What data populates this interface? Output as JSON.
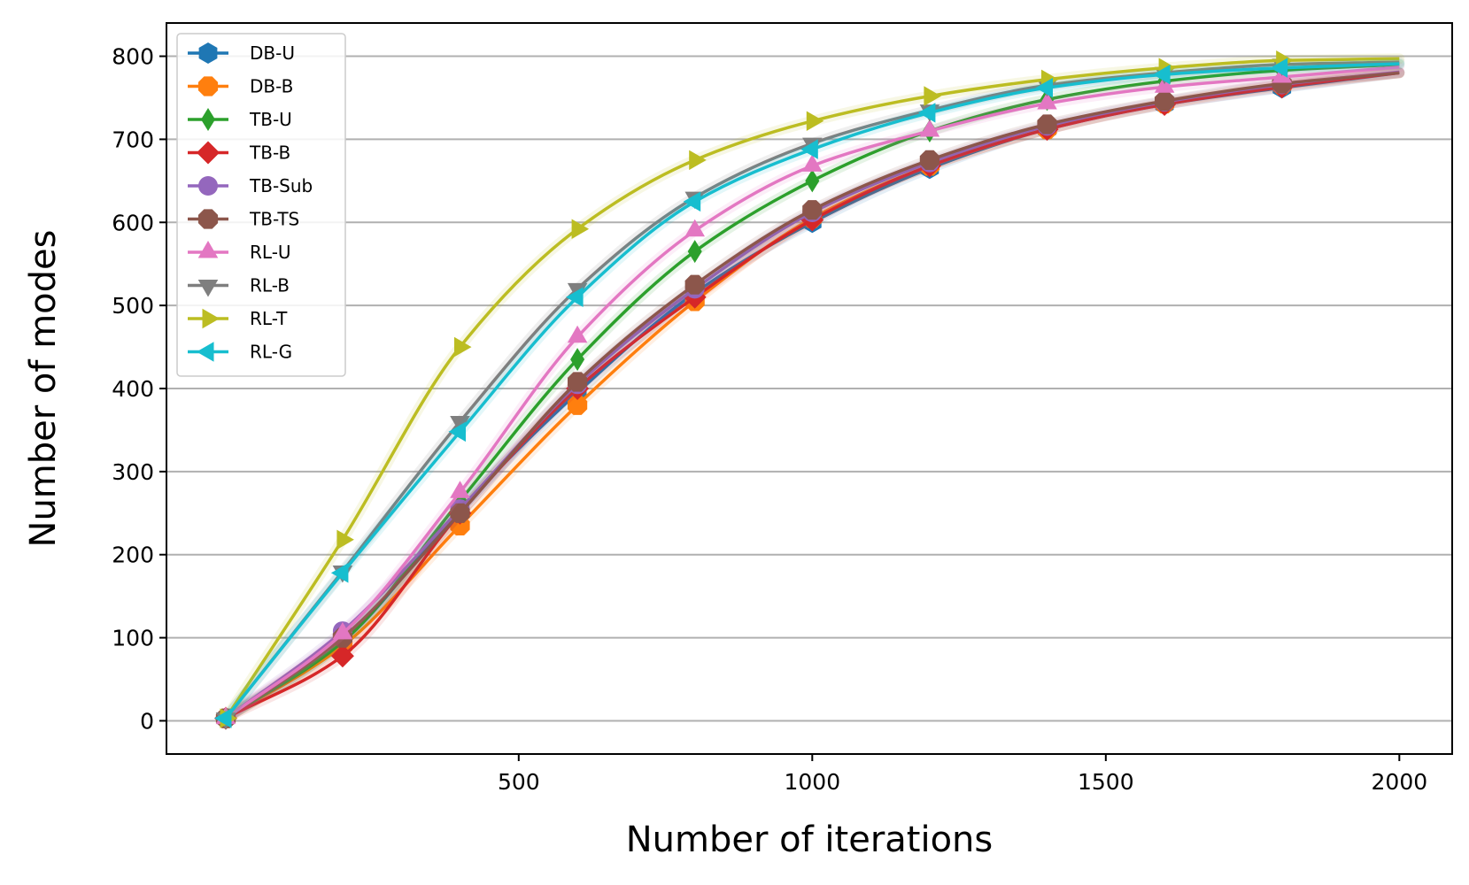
{
  "chart_data": {
    "type": "line",
    "title": "",
    "xlabel": "Number of iterations",
    "ylabel": "Number of modes",
    "xlim": [
      -100,
      2090
    ],
    "ylim": [
      -40,
      840
    ],
    "xticks": [
      500,
      1000,
      1500,
      2000
    ],
    "yticks": [
      0,
      100,
      200,
      300,
      400,
      500,
      600,
      700,
      800
    ],
    "grid": "horizontal",
    "legend_position": "top-left",
    "x": [
      1,
      200,
      400,
      600,
      800,
      1000,
      1200,
      1400,
      1600,
      1800,
      2000
    ],
    "marker_x": [
      1,
      200,
      400,
      600,
      800,
      1000,
      1200,
      1400,
      1600,
      1800
    ],
    "series": [
      {
        "name": "DB-U",
        "color": "#1f77b4",
        "marker": "hexagon",
        "values": [
          3,
          95,
          255,
          395,
          515,
          600,
          665,
          712,
          742,
          762,
          780
        ]
      },
      {
        "name": "DB-B",
        "color": "#ff7f0e",
        "marker": "octagon",
        "values": [
          3,
          90,
          235,
          380,
          505,
          605,
          668,
          712,
          743,
          765,
          780
        ]
      },
      {
        "name": "TB-U",
        "color": "#2ca02c",
        "marker": "thin_diamond",
        "values": [
          3,
          95,
          265,
          435,
          565,
          650,
          710,
          748,
          770,
          783,
          790
        ]
      },
      {
        "name": "TB-B",
        "color": "#d62728",
        "marker": "diamond",
        "values": [
          3,
          78,
          250,
          400,
          510,
          603,
          668,
          712,
          742,
          763,
          780
        ]
      },
      {
        "name": "TB-Sub",
        "color": "#9467bd",
        "marker": "circle",
        "values": [
          3,
          108,
          255,
          405,
          520,
          612,
          672,
          716,
          745,
          766,
          781
        ]
      },
      {
        "name": "TB-TS",
        "color": "#8c564b",
        "marker": "octagon",
        "values": [
          3,
          100,
          250,
          408,
          525,
          615,
          675,
          718,
          746,
          767,
          780
        ]
      },
      {
        "name": "RL-U",
        "color": "#e377c2",
        "marker": "triangle_up",
        "values": [
          3,
          105,
          275,
          462,
          590,
          668,
          710,
          743,
          763,
          775,
          787
        ]
      },
      {
        "name": "RL-B",
        "color": "#7f7f7f",
        "marker": "triangle_down",
        "values": [
          3,
          180,
          360,
          520,
          630,
          695,
          735,
          765,
          780,
          790,
          793
        ]
      },
      {
        "name": "RL-T",
        "color": "#bcbd22",
        "marker": "triangle_right",
        "values": [
          3,
          218,
          450,
          592,
          675,
          722,
          752,
          772,
          786,
          795,
          797
        ]
      },
      {
        "name": "RL-G",
        "color": "#17becf",
        "marker": "triangle_left",
        "values": [
          3,
          178,
          348,
          510,
          625,
          688,
          732,
          762,
          778,
          786,
          791
        ]
      }
    ]
  }
}
